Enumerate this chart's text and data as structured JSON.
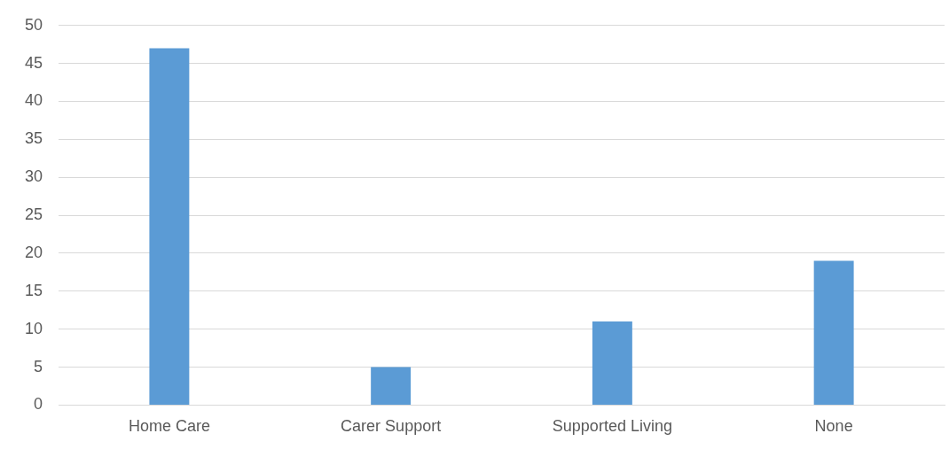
{
  "chart_data": {
    "type": "bar",
    "categories": [
      "Home Care",
      "Carer Support",
      "Supported Living",
      "None"
    ],
    "values": [
      47,
      5,
      11,
      19
    ],
    "color": "#5b9bd5",
    "ylim": [
      0,
      50
    ],
    "yticks": [
      0,
      5,
      10,
      15,
      20,
      25,
      30,
      35,
      40,
      45,
      50
    ],
    "grid": "y"
  }
}
